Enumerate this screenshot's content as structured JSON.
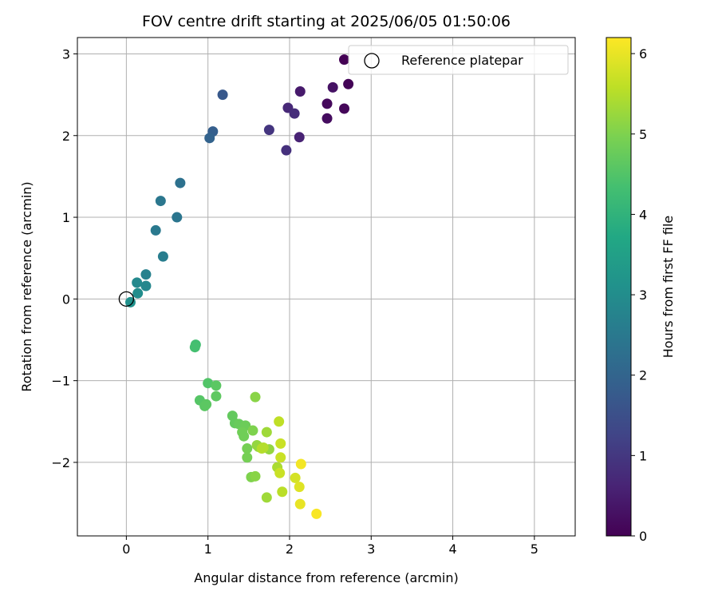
{
  "chart_data": {
    "type": "scatter",
    "title": "FOV centre drift starting at 2025/06/05 01:50:06",
    "xlabel": "Angular distance from reference (arcmin)",
    "ylabel": "Rotation from reference (arcmin)",
    "xlim": [
      -0.6,
      5.5
    ],
    "ylim": [
      -2.9,
      3.2
    ],
    "xticks": [
      0,
      1,
      2,
      3,
      4,
      5
    ],
    "yticks": [
      -2,
      -1,
      0,
      1,
      2,
      3
    ],
    "grid": true,
    "legend": {
      "position": "top-right",
      "entries": [
        {
          "label": "Reference platepar",
          "marker": "open-circle",
          "x": 0,
          "y": 0
        }
      ]
    },
    "colorbar": {
      "label": "Hours from first FF file",
      "range": [
        0,
        6.2
      ],
      "ticks": [
        0,
        1,
        2,
        3,
        4,
        5,
        6
      ],
      "colormap": "viridis"
    },
    "points": [
      {
        "x": 2.67,
        "y": 2.93,
        "c": 0.0
      },
      {
        "x": 2.72,
        "y": 2.63,
        "c": 0.05
      },
      {
        "x": 2.67,
        "y": 2.33,
        "c": 0.1
      },
      {
        "x": 2.46,
        "y": 2.39,
        "c": 0.15
      },
      {
        "x": 2.46,
        "y": 2.21,
        "c": 0.2
      },
      {
        "x": 2.53,
        "y": 2.59,
        "c": 0.3
      },
      {
        "x": 2.13,
        "y": 2.54,
        "c": 0.45
      },
      {
        "x": 2.12,
        "y": 1.98,
        "c": 0.6
      },
      {
        "x": 1.98,
        "y": 2.34,
        "c": 0.7
      },
      {
        "x": 2.06,
        "y": 2.27,
        "c": 0.8
      },
      {
        "x": 1.96,
        "y": 1.82,
        "c": 0.85
      },
      {
        "x": 1.75,
        "y": 2.07,
        "c": 0.95
      },
      {
        "x": 1.18,
        "y": 2.5,
        "c": 1.7
      },
      {
        "x": 1.06,
        "y": 2.05,
        "c": 1.85
      },
      {
        "x": 1.02,
        "y": 1.97,
        "c": 1.95
      },
      {
        "x": 0.66,
        "y": 1.42,
        "c": 2.3
      },
      {
        "x": 0.62,
        "y": 1.0,
        "c": 2.4
      },
      {
        "x": 0.42,
        "y": 1.2,
        "c": 2.45
      },
      {
        "x": 0.36,
        "y": 0.84,
        "c": 2.5
      },
      {
        "x": 0.45,
        "y": 0.52,
        "c": 2.6
      },
      {
        "x": 0.24,
        "y": 0.3,
        "c": 2.7
      },
      {
        "x": 0.24,
        "y": 0.16,
        "c": 2.85
      },
      {
        "x": 0.13,
        "y": 0.2,
        "c": 2.9
      },
      {
        "x": 0.14,
        "y": 0.07,
        "c": 3.0
      },
      {
        "x": 0.05,
        "y": -0.04,
        "c": 3.1
      },
      {
        "x": 0.85,
        "y": -0.56,
        "c": 4.3
      },
      {
        "x": 0.84,
        "y": -0.59,
        "c": 4.35
      },
      {
        "x": 1.0,
        "y": -1.03,
        "c": 4.5
      },
      {
        "x": 1.1,
        "y": -1.06,
        "c": 4.6
      },
      {
        "x": 1.1,
        "y": -1.19,
        "c": 4.65
      },
      {
        "x": 0.9,
        "y": -1.24,
        "c": 4.55
      },
      {
        "x": 0.96,
        "y": -1.31,
        "c": 4.6
      },
      {
        "x": 0.98,
        "y": -1.29,
        "c": 4.62
      },
      {
        "x": 1.3,
        "y": -1.43,
        "c": 4.7
      },
      {
        "x": 1.33,
        "y": -1.52,
        "c": 4.7
      },
      {
        "x": 1.38,
        "y": -1.53,
        "c": 4.75
      },
      {
        "x": 1.46,
        "y": -1.55,
        "c": 4.8
      },
      {
        "x": 1.42,
        "y": -1.63,
        "c": 4.85
      },
      {
        "x": 1.44,
        "y": -1.68,
        "c": 4.85
      },
      {
        "x": 1.48,
        "y": -1.83,
        "c": 4.9
      },
      {
        "x": 1.48,
        "y": -1.94,
        "c": 4.9
      },
      {
        "x": 1.55,
        "y": -1.61,
        "c": 5.0
      },
      {
        "x": 1.58,
        "y": -1.2,
        "c": 5.1
      },
      {
        "x": 1.6,
        "y": -1.79,
        "c": 5.2
      },
      {
        "x": 1.62,
        "y": -1.81,
        "c": 5.2
      },
      {
        "x": 1.53,
        "y": -2.18,
        "c": 5.0
      },
      {
        "x": 1.58,
        "y": -2.17,
        "c": 5.1
      },
      {
        "x": 1.72,
        "y": -1.63,
        "c": 5.3
      },
      {
        "x": 1.75,
        "y": -1.84,
        "c": 5.2
      },
      {
        "x": 1.66,
        "y": -1.83,
        "c": 5.5
      },
      {
        "x": 1.68,
        "y": -1.82,
        "c": 5.5
      },
      {
        "x": 1.72,
        "y": -2.43,
        "c": 5.3
      },
      {
        "x": 1.85,
        "y": -2.06,
        "c": 5.4
      },
      {
        "x": 1.87,
        "y": -1.5,
        "c": 5.6
      },
      {
        "x": 1.89,
        "y": -1.77,
        "c": 5.7
      },
      {
        "x": 1.89,
        "y": -1.94,
        "c": 5.7
      },
      {
        "x": 1.88,
        "y": -2.13,
        "c": 5.7
      },
      {
        "x": 1.91,
        "y": -2.36,
        "c": 5.55
      },
      {
        "x": 2.07,
        "y": -2.19,
        "c": 5.8
      },
      {
        "x": 2.12,
        "y": -2.3,
        "c": 5.9
      },
      {
        "x": 2.14,
        "y": -2.02,
        "c": 6.1
      },
      {
        "x": 2.13,
        "y": -2.51,
        "c": 6.0
      },
      {
        "x": 2.33,
        "y": -2.63,
        "c": 6.15
      }
    ]
  }
}
